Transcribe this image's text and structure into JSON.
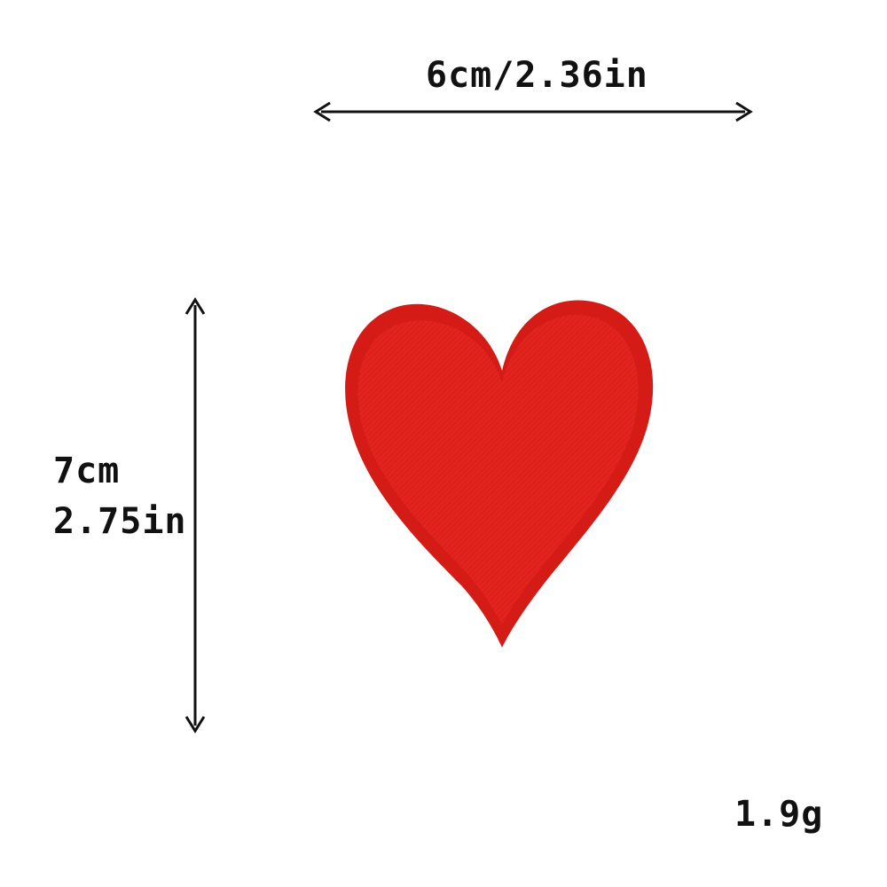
{
  "dimensions": {
    "width_label": "6cm/2.36in",
    "height_label_cm": "7cm",
    "height_label_in": "2.75in",
    "weight_label": "1.9g"
  },
  "product": {
    "icon": "heart-patch",
    "color": "#e2211c",
    "border_color": "#d11a16"
  }
}
